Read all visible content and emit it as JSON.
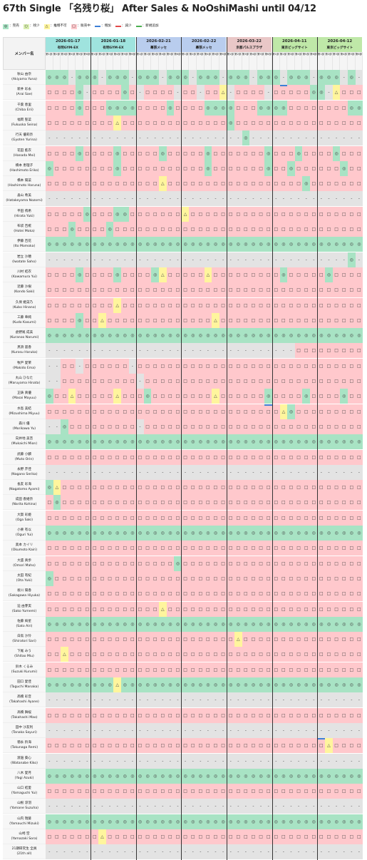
{
  "page_title": "67th Single 「名残り桜」 After Sales & NoOshiMashi until 04/12",
  "legend": [
    {
      "sym": "◎",
      "label": "：完売",
      "status": "ok"
    },
    {
      "sym": "○",
      "label": "：残少",
      "status": "lo"
    },
    {
      "sym": "△",
      "label": "：推増不可",
      "status": "tr"
    },
    {
      "sym": "□",
      "label": "：販売中",
      "status": "sl"
    },
    {
      "line": "up",
      "label": "：増加"
    },
    {
      "line": "dn",
      "label": "：減少"
    },
    {
      "line": "nw",
      "label": "：新規追加"
    }
  ],
  "colors": {
    "sold_out": "#a8e3c4",
    "few_left": "#d9efb0",
    "no_add": "#fff59d",
    "on_sale": "#ffc8cc",
    "none": "#e3e3e3",
    "increase": "#3d7fd6",
    "decrease": "#e24a4a",
    "new": "#4caf50"
  },
  "member_header": "メンバー名",
  "slot_labels": [
    "第1部",
    "第2部",
    "第3部",
    "第4部",
    "第5部",
    "第6部"
  ],
  "events": [
    {
      "date": "2026-01-17",
      "venue": "有明GYM-EX",
      "color": "#9fe3de"
    },
    {
      "date": "2026-01-18",
      "venue": "有明GYM-EX",
      "color": "#9fe3de"
    },
    {
      "date": "2026-02-21",
      "venue": "幕張メッセ",
      "color": "#b9cdee"
    },
    {
      "date": "2026-02-22",
      "venue": "幕張メッセ",
      "color": "#b9cdee"
    },
    {
      "date": "2026-03-22",
      "venue": "京都パルスプラザ",
      "color": "#e9c7c7"
    },
    {
      "date": "2026-04-11",
      "venue": "東京ビッグサイト",
      "color": "#bfe8a8"
    },
    {
      "date": "2026-04-12",
      "venue": "東京ビッグサイト",
      "color": "#bfe8a8"
    }
  ],
  "members": [
    {
      "ja": "秋山 由奈",
      "en": "(Akiyama Yuna)",
      "row": "OOO-OOO-OOO-ОOO-OOO-OOO-OOO-OOO-OOO-OOO-O---O-O"
    },
    {
      "ja": "新井 彩永",
      "en": "(Arai Sae)",
      "row": "SSSSO-SSSSOS-SSSS-SS-SST-SSSS-SSSSSOO-TSSS-SSSSO"
    },
    {
      "ja": "千葉 恵里",
      "en": "(Chiba Erii)",
      "row": "SSSSOSSSOOOOSSSSOSSSSOOOOSSSOOOOSSSSSSSSOOOSS"
    },
    {
      "ja": "福岡 聖菜",
      "en": "(Fukuoka Seina)",
      "row": "SSSSSSSSSTSSSSSSSSSSSSSSOSSSSSSSSSSSSSSSSSSSS"
    },
    {
      "ja": "行天 優莉奈",
      "en": "(Gyoten Yurina)",
      "row": "--------------------------O--------------------"
    },
    {
      "ja": "花田 藍衣",
      "en": "(Hanada Mei)",
      "row": "SSSSOSSSSOSSSSSOSSSSSOSSSSSSSOSSSOSSSSOSSSSSOOS"
    },
    {
      "ja": "橋本 恵理子",
      "en": "(Hashimoto Eriko)",
      "row": "OSSSSSSSSOSSSSSSSSSSSOSSSSSSSOSSOSSSSSSOSSSSSS"
    },
    {
      "ja": "橋本 陽菜",
      "en": "(Hashimoto Haruna)",
      "row": "SSSSSSSSSSSSSSSTSSSSSSSSSSSSSSSSSSOSSSSSSSSSSS"
    },
    {
      "ja": "畠山 希美",
      "en": "(Hatakeyama Nozomi)",
      "row": "-----------------------------------------------"
    },
    {
      "ja": "平田 侑希",
      "en": "(Hirata Yuki)",
      "row": "SSSSSOSSSOOSSSSSSSTSSSSSSSSSSSSSSSSSSSSSSSSSSS"
    },
    {
      "ja": "布袋 百椛",
      "en": "(Hotei Moka)",
      "row": "SSSOSSSSOSSSSSSSSSSSSSSSSSSSSSSSSSSSSSSSSSSSSS"
    },
    {
      "ja": "伊藤 百花",
      "en": "(Ito Momoka)",
      "row": "OOOOOOOOOOOOOOOOOOOOOOOOOOOOOOOOOOOOOOOOOOOOO"
    },
    {
      "ja": "岩立 沙穂",
      "en": "(Iwatate Saho)",
      "row": "----------------------------------------O------"
    },
    {
      "ja": "川村 結衣",
      "en": "(Kawamura Yui)",
      "row": "SSSSOSSSSOSSSSOTSSSSSTSSSSSSSSSOSSSSSOSSSSSSSS"
    },
    {
      "ja": "近藤 沙樹",
      "en": "(Kondo Saki)",
      "row": "SSSSSSSSSSSSSSSSSSSSSSSSSSSSSSSSSSSSSSSSSSSSSS"
    },
    {
      "ja": "久保 姫菜乃",
      "en": "(Kubo Hinano)",
      "row": "SSSSSSSSSTSSSSSSSSSSSSSSSSSSSSSSSSSSSSSSSSSSSS"
    },
    {
      "ja": "工藤 華純",
      "en": "(Kudo Kasumi)",
      "row": "SSSSOSSTSSSSSSSSSSSSSSTSSSSSSSSSSSSSSSSSSSSSSS"
    },
    {
      "ja": "倉野尾 成美",
      "en": "(Kuranoo Narumi)",
      "row": "OOOOOOOOOOOOOOOOOOOOOOOOOOOOOOOOOOOOOOOOOOOOO"
    },
    {
      "ja": "黒須 遥香",
      "en": "(Kurosu Haruka)",
      "row": "---------------------------------SSSSSSSSSSSS"
    },
    {
      "ja": "牧戸 愛茉",
      "en": "(Makido Ema)",
      "row": "--SS-SSSSSS-SSSSSSSSSSSSSSSSSSSSSSSSSSSSSSSSSS"
    },
    {
      "ja": "丸山 ひなた",
      "en": "(Maruyama Hinata)",
      "row": "--SSSSSSSSSS-SSSSSSSSSSSSSSSSSSSSSSSSSSSSSSSSSS"
    },
    {
      "ja": "正鋳 真優",
      "en": "(Masai Mayuu)",
      "row": "OSSTSSSSSTSSSOSSSSSSSSTSSSSSSOSSSSOSSSSOSSSSSS"
    },
    {
      "ja": "水島 美結",
      "en": "(Mizushima Miyuu)",
      "row": "SSSSSSSSSSSSSSSSSSSSSSSSSSSSSSSTOSSSSSSSSSSSSS"
    },
    {
      "ja": "森川 優",
      "en": "(Morikawa Yu)",
      "row": "--OSSSSSSSSS-SSSSSSSSSSSSSSSSSSSSSSSSSSSSSSSSS"
    },
    {
      "ja": "向井地 美音",
      "en": "(Mukaichi Mion)",
      "row": "OOOOOOOOOOOOOOOOOOOOOOOOOOOOOOOOOOOOOOOOOOOOO"
    },
    {
      "ja": "武藤 小麟",
      "en": "(Muto Orin)",
      "row": "SSSSSSSSSSSSSSSSSSSSSSSSSSSSSSSSSSSSSSSSSSSSS"
    },
    {
      "ja": "永野 芹佳",
      "en": "(Nagano Serika)",
      "row": "-----------------------------------------------"
    },
    {
      "ja": "長友 彩海",
      "en": "(Nagatomo Ayami)",
      "row": "OTSSSSSSSSSSSSSSSSSSSSSSSSSSSSSSSSSSSSSSSSSSSS"
    },
    {
      "ja": "成田 香姫奈",
      "en": "(Narita Kohina)",
      "row": "SOSSSSSSSSSSSSSSSSSSSSSSSSSSSSSSSSSSSSSSSSSSSS"
    },
    {
      "ja": "大賀 彩姫",
      "en": "(Oga Saki)",
      "row": "SSSSSSSSSSSSSSSSSSSSSSSSSSSSSSSSSSSSSSSSSSSSSS"
    },
    {
      "ja": "小栗 有以",
      "en": "(Oguri Yui)",
      "row": "OOOOOOOOOOOOOOOOOOOOOOOOOOOOOOOOOOOOOOOOOOOOO"
    },
    {
      "ja": "奥本 カイリ",
      "en": "(Okumoto Kairi)",
      "row": "SSSSSSSSSSSSSSSSSSSSSSSSSSSSSSSSSSSSSSSSSSSSS"
    },
    {
      "ja": "大盛 真歩",
      "en": "(Omori Maho)",
      "row": "SSSSSSSSSSSSSSSSSOSSSSSSSSSSSSSSSSSSSSSSSSSSSS"
    },
    {
      "ja": "太田 有紀",
      "en": "(Ota Yuki)",
      "row": "OSSSSSSSSSSSSSSSSSSSSSSSSSSSSSSSSSSSSSSSSSSSSS"
    },
    {
      "ja": "坂川 陽香",
      "en": "(Sakagawa Hiyuka)",
      "row": "SSSSSSSSSSSSSSSSSSSSSSSSSSSSSSSSSSSSSSSSSSSSSS"
    },
    {
      "ja": "迫 由芽実",
      "en": "(Sako Yumemi)",
      "row": "SSSSSSSSSSSSSSSTSSSSSSSSSSSSSSSSSSSSSSSSSSSSSS"
    },
    {
      "ja": "佐藤 綺星",
      "en": "(Sato Airi)",
      "row": "OOOOOOOOOOOOOOOOOOOOOOOOOOOOOOOOOOOOOOOOOOOOO"
    },
    {
      "ja": "白鳥 沙怜",
      "en": "(Shiratori Sari)",
      "row": "SSSSSSSSSSSSSSSSSSSSSSSSSTSSSSSSSSSSSSSSSSSSSS"
    },
    {
      "ja": "下尾 みう",
      "en": "(Shitao Miu)",
      "row": "SSTSSSSSSSSSSSSSSSSSSSSSSSSSSSSSSSSSSSSSSSSSSS"
    },
    {
      "ja": "鈴木 くるみ",
      "en": "(Suzuki Kurumi)",
      "row": "SSSSSSSSSSSSSSSSSSSSSSSSSSSSSSSSSSSSSSSSSSSSSS"
    },
    {
      "ja": "田口 愛佳",
      "en": "(Taguchi Manaka)",
      "row": "OOOOOOOOOTOOOOOOOOOOOOOOOOOOOOOOOOOOOOOOOOOOO"
    },
    {
      "ja": "髙橋 彩音",
      "en": "(Takahashi Ayane)",
      "row": "-----------------------------------------------"
    },
    {
      "ja": "高橋 舞桜",
      "en": "(Takahashi Mao)",
      "row": "SSSSSSSSSSSSSSSSSSSSSSSSSSSSSSSSSSSSSSSSSSSSSS"
    },
    {
      "ja": "田中 沙友利",
      "en": "(Tanaka Sayuri)",
      "row": "-----------------------------------------------"
    },
    {
      "ja": "徳永 羚海",
      "en": "(Tokunaga Remi)",
      "row": "SSSSSSSSSSSSSSSSSSSSSSSSSSSSSSSSSSSSSTSSSSSSSS"
    },
    {
      "ja": "渡邉 葵心",
      "en": "(Watanabe Kiko)",
      "row": "-----------------------------------------------"
    },
    {
      "ja": "八木 愛月",
      "en": "(Yagi Azuki)",
      "row": "OOOOOOOOOOOOOOOOOOOOOOOOOOOOOOOOOOOOOOOOOOOOO"
    },
    {
      "ja": "山口 結愛",
      "en": "(Yamaguchi Yui)",
      "row": "SSSSSSSSSSSSSSSSSSSSSSSSSSSSSSSSSSSSSSSSSSSSSS"
    },
    {
      "ja": "山根 涼羽",
      "en": "(Yamane Suzuha)",
      "row": "-----------------------------------------------"
    },
    {
      "ja": "山内 瑞葵",
      "en": "(Yamauchi Mizuki)",
      "row": "OOOOOOOOOOOOOOOOOOOOOOOOOOOOOOOOOOOOOOOOOOOOO"
    },
    {
      "ja": "山崎 空",
      "en": "(Yamazaki Sora)",
      "row": "SSSSSSSTSSSSSSSSSSSSSSSSSSSSSSSSSSSSSSSSSSSSSS"
    },
    {
      "ja": "21期研究生 全員",
      "en": "(21th all)",
      "row": "-----------------------------------------------"
    }
  ],
  "increase_markers": [
    {
      "member": 1,
      "event": 5,
      "slot": 1
    },
    {
      "member": 22,
      "event": 4,
      "slot": 5
    },
    {
      "member": 44,
      "event": 6,
      "slot": 0
    }
  ]
}
